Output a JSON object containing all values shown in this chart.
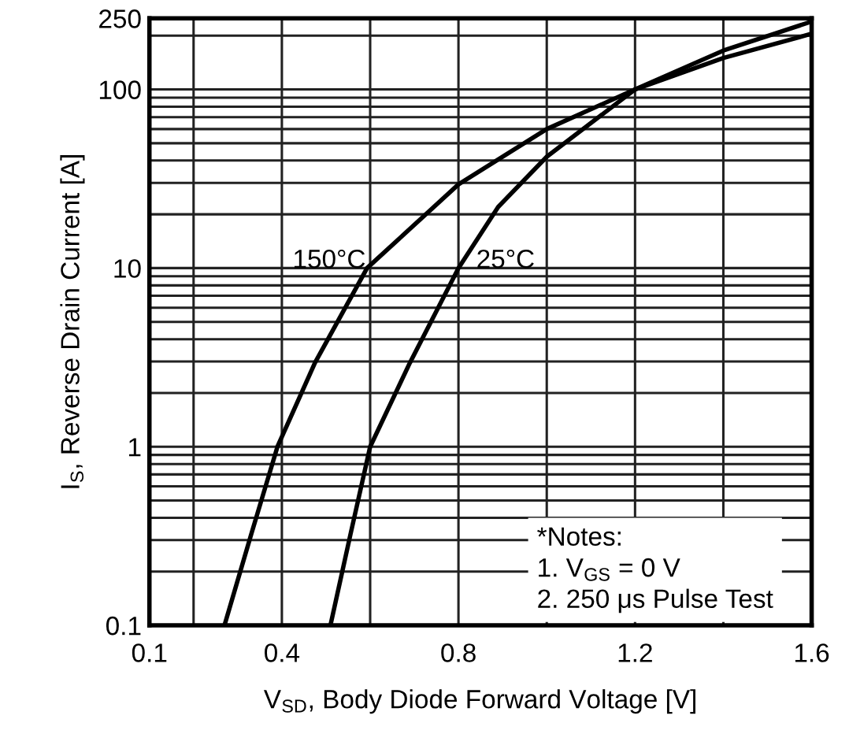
{
  "chart_data": {
    "type": "line",
    "xlabel": "V$_{SD}$, Body Diode Forward Voltage [V]",
    "ylabel": "I$_{S}$, Reverse Drain Current [A]",
    "series": [
      {
        "name": "150°C",
        "color": "#000000",
        "x": [
          0.27,
          0.33,
          0.39,
          0.475,
          0.593,
          0.8,
          1.0,
          1.2,
          1.4,
          1.6
        ],
        "values": [
          0.1,
          0.32,
          1,
          2.95,
          10,
          29.4,
          60,
          100,
          150,
          205
        ]
      },
      {
        "name": "25°C",
        "color": "#000000",
        "x": [
          0.51,
          0.555,
          0.6,
          0.69,
          0.8,
          0.89,
          1.0,
          1.2,
          1.4,
          1.6
        ],
        "values": [
          0.1,
          0.32,
          1,
          2.95,
          10,
          22,
          42,
          100,
          165,
          240
        ]
      }
    ],
    "xlim": [
      0.1,
      1.6
    ],
    "xticks": [
      0.1,
      {
        "value": 0.2,
        "label": null
      },
      0.4,
      {
        "value": 0.6,
        "label": null
      },
      0.8,
      {
        "value": 1.0,
        "label": null
      },
      1.2,
      {
        "value": 1.4,
        "label": null
      },
      1.6
    ],
    "ylim": [
      0.1,
      250
    ],
    "yticks": [
      0.1,
      1,
      10,
      100,
      250
    ],
    "log": "y",
    "grid": true,
    "annotations": [
      "*Notes:\n1. V$_{GS}$ = 0 V\n2. 250 μs Pulse Test"
    ]
  }
}
